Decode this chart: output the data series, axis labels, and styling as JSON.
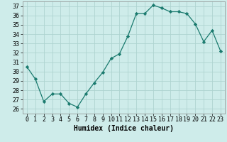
{
  "x": [
    0,
    1,
    2,
    3,
    4,
    5,
    6,
    7,
    8,
    9,
    10,
    11,
    12,
    13,
    14,
    15,
    16,
    17,
    18,
    19,
    20,
    21,
    22,
    23
  ],
  "y": [
    30.5,
    29.2,
    26.8,
    27.6,
    27.6,
    26.6,
    26.2,
    27.6,
    28.8,
    29.9,
    31.4,
    31.9,
    33.8,
    36.2,
    36.2,
    37.1,
    36.8,
    36.4,
    36.4,
    36.2,
    35.1,
    33.2,
    34.4,
    32.2
  ],
  "line_color": "#1a7a6e",
  "marker": "D",
  "marker_size": 2.2,
  "bg_color": "#ceecea",
  "grid_color": "#aed4d0",
  "xlabel": "Humidex (Indice chaleur)",
  "xlim": [
    -0.5,
    23.5
  ],
  "ylim": [
    25.5,
    37.5
  ],
  "yticks": [
    26,
    27,
    28,
    29,
    30,
    31,
    32,
    33,
    34,
    35,
    36,
    37
  ],
  "xticks": [
    0,
    1,
    2,
    3,
    4,
    5,
    6,
    7,
    8,
    9,
    10,
    11,
    12,
    13,
    14,
    15,
    16,
    17,
    18,
    19,
    20,
    21,
    22,
    23
  ],
  "xlabel_fontsize": 7,
  "tick_fontsize": 6,
  "linewidth": 0.9
}
